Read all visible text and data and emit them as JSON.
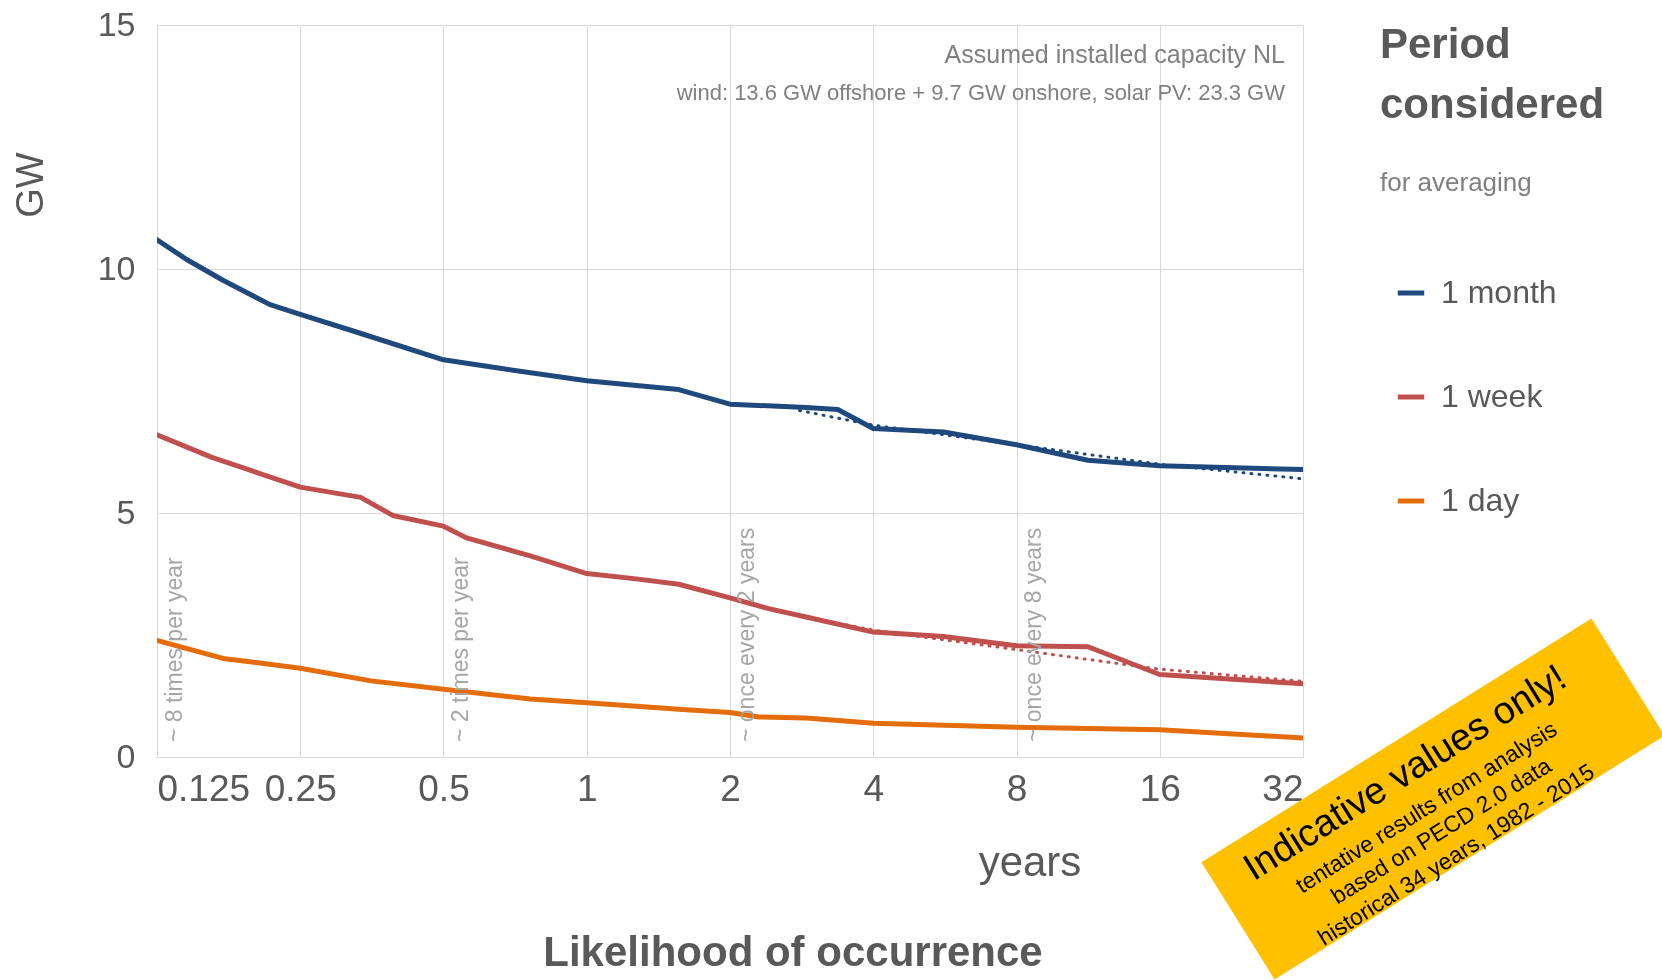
{
  "chart_data": {
    "type": "line",
    "xlabel": "years",
    "ylabel": "GW",
    "legend_title": "Period considered",
    "annotations": [
      "Assumed installed capacity NL",
      "wind: 13.6 GW offshore + 9.7 GW onshore, solar PV: 23.3 GW",
      "for averaging",
      "Likelihood of occurrence",
      "~ 8 times per year",
      "~ 2 times per year",
      "~ once every 2 years",
      "~ once every 8 years",
      "Indicative values only!",
      "tentative results from analysis",
      "based on PECD 2.0 data",
      "historical 34 years, 1982 - 2015"
    ],
    "log": "x",
    "xlim": [
      0.125,
      32
    ],
    "xticks": [
      0.125,
      0.25,
      0.5,
      1,
      2,
      4,
      8,
      16,
      32
    ],
    "ylim": [
      0,
      15
    ],
    "yticks": [
      0,
      5,
      10,
      15
    ],
    "grid": true,
    "legend": "right",
    "line_style": "solid",
    "series": [
      {
        "name": "1 month",
        "color": "#1f497d",
        "x": [
          0.125,
          0.144,
          0.172,
          0.216,
          0.25,
          0.318,
          0.5,
          0.652,
          1,
          1.56,
          2,
          2.89,
          3.37,
          4,
          5.62,
          8,
          11.3,
          16,
          32
        ],
        "values": [
          10.6,
          10.2,
          9.77,
          9.27,
          9.07,
          8.75,
          8.14,
          7.97,
          7.71,
          7.53,
          7.23,
          7.16,
          7.12,
          6.73,
          6.66,
          6.4,
          6.08,
          5.97,
          5.89
        ]
      },
      {
        "name": "1 week",
        "color": "#c0504d",
        "x": [
          0.125,
          0.163,
          0.25,
          0.335,
          0.391,
          0.5,
          0.559,
          0.761,
          1,
          1.27,
          1.56,
          2,
          2.41,
          2.89,
          4,
          5.62,
          8,
          11.3,
          16,
          32
        ],
        "values": [
          6.6,
          6.14,
          5.53,
          5.32,
          4.95,
          4.73,
          4.49,
          4.12,
          3.76,
          3.65,
          3.54,
          3.26,
          3.04,
          2.87,
          2.56,
          2.47,
          2.28,
          2.26,
          1.69,
          1.5
        ]
      },
      {
        "name": "1 day",
        "color": "#e46c0a",
        "x": [
          0.125,
          0.172,
          0.25,
          0.352,
          0.5,
          0.761,
          1,
          1.56,
          2,
          2.3,
          2.89,
          4,
          8,
          16,
          32
        ],
        "values": [
          2.39,
          2.02,
          1.82,
          1.56,
          1.39,
          1.19,
          1.11,
          0.98,
          0.91,
          0.82,
          0.8,
          0.69,
          0.61,
          0.56,
          0.39
        ]
      },
      {
        "color": "#1f497d",
        "line_style": "dotted",
        "x": [
          2.8,
          4,
          8,
          16,
          32
        ],
        "values": [
          7.1,
          6.8,
          6.4,
          6.0,
          5.7
        ]
      },
      {
        "color": "#c0504d",
        "line_style": "dotted",
        "x": [
          2.8,
          4,
          8,
          11.3,
          16,
          32
        ],
        "values": [
          2.9,
          2.6,
          2.2,
          2.0,
          1.8,
          1.55
        ]
      }
    ]
  }
}
